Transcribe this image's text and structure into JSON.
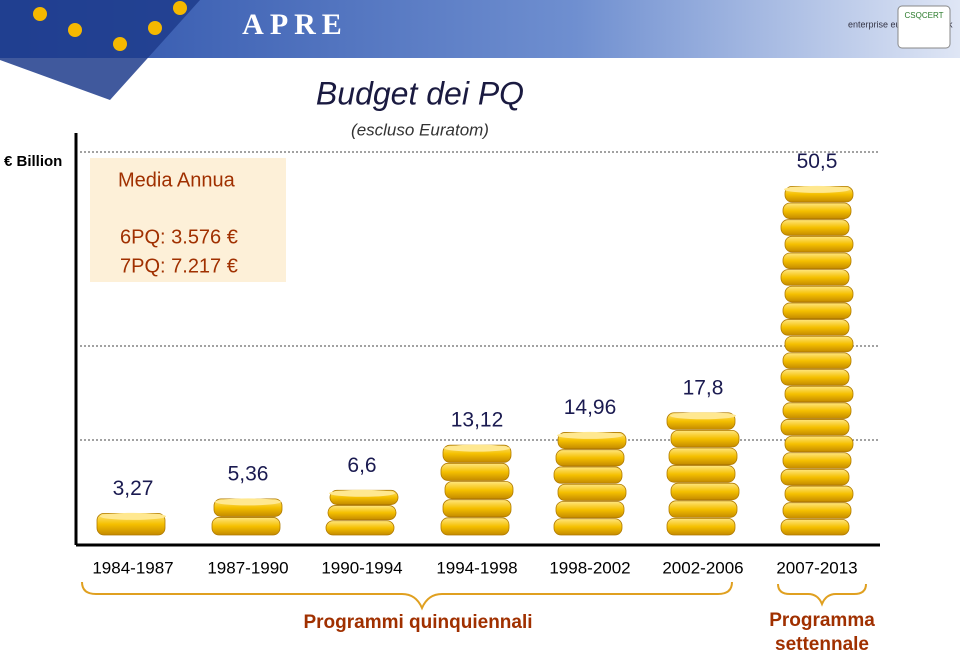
{
  "header": {
    "logo": "APRE",
    "partner": "enterprise europe network",
    "cert": "CSQCERT"
  },
  "chart_data": {
    "type": "coinstack",
    "title": "Budget dei PQ",
    "subtitle": "(escluso Euratom)",
    "y_label": "€ Billion",
    "annotation": {
      "title": "Media Annua",
      "lines": [
        "6PQ: 3.576 €",
        "7PQ: 7.217 €"
      ]
    },
    "categories": [
      "1984-1987",
      "1987-1990",
      "1990-1994",
      "1994-1998",
      "1998-2002",
      "2002-2006",
      "2007-2013"
    ],
    "values": [
      3.27,
      5.36,
      6.6,
      13.12,
      14.96,
      17.8,
      50.5
    ],
    "value_labels": [
      "3,27",
      "5,36",
      "6,6",
      "13,12",
      "14,96",
      "17,8",
      "50,5"
    ],
    "ylim": [
      0,
      52
    ],
    "groups": [
      "Programmi quinquiennali",
      "Programma settennale"
    ],
    "color": "#f5c000"
  }
}
